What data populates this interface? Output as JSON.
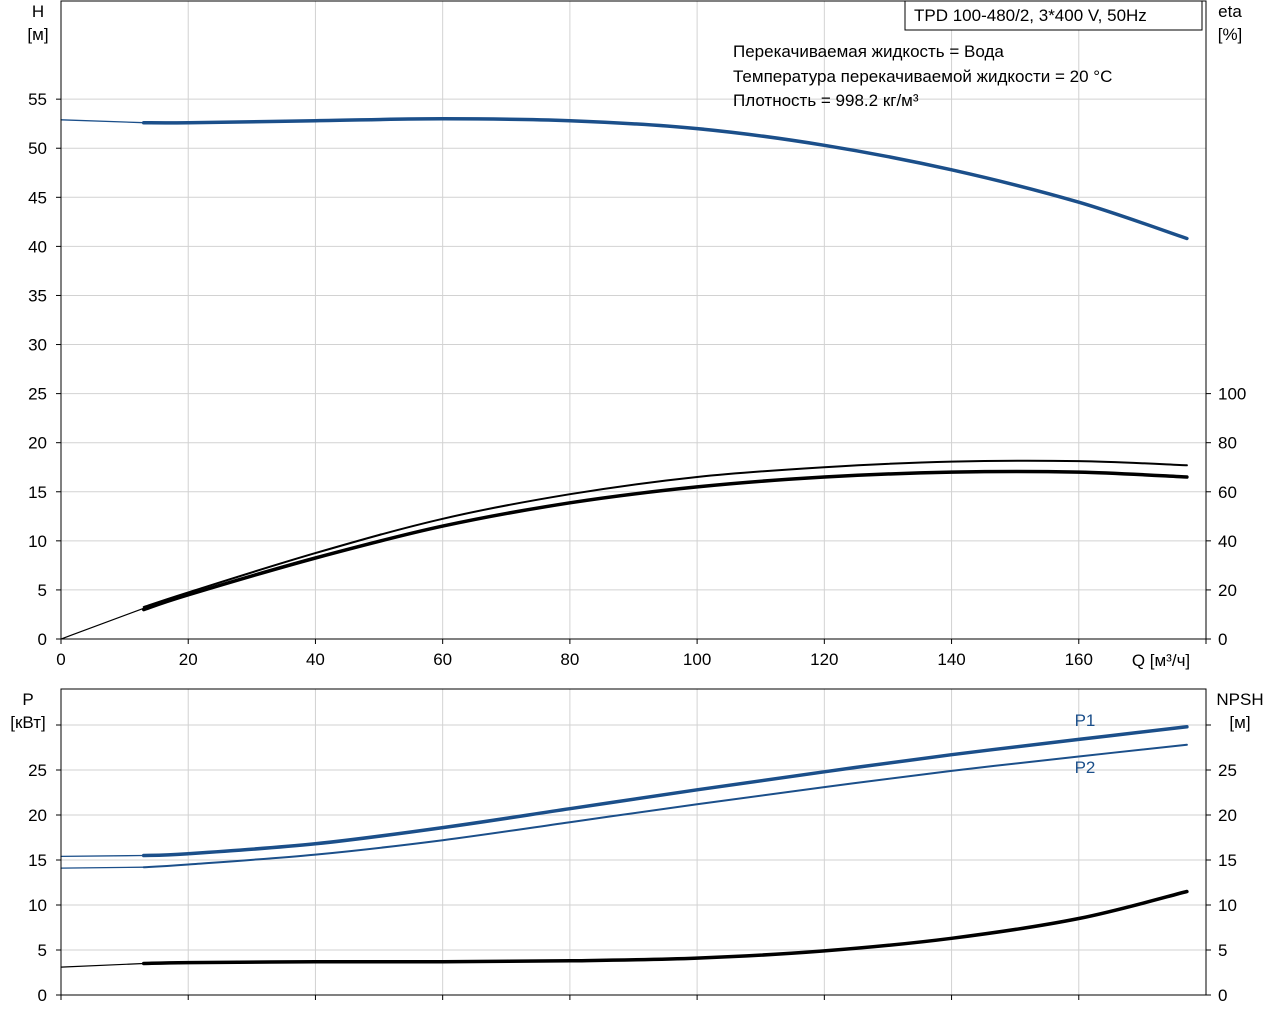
{
  "pump_model": "TPD 100-480/2, 3*400 V, 50Hz",
  "info_lines": [
    "Перекачиваемая жидкость = Вода",
    "Температура перекачиваемой жидкости = 20 °C",
    "Плотность = 998.2 кг/м³"
  ],
  "colors": {
    "blue": "#1b4f8a",
    "black": "#000000",
    "grid": "#d2d2d2"
  },
  "chart_data": [
    {
      "type": "line",
      "x_label": "Q [м³/ч]",
      "x_range": [
        0,
        180
      ],
      "x_ticks": [
        0,
        20,
        40,
        60,
        80,
        100,
        120,
        140,
        160
      ],
      "y_label_line1": "H",
      "y_label_line2": "[м]",
      "y_range": [
        0,
        65
      ],
      "y_ticks": [
        0,
        5,
        10,
        15,
        20,
        25,
        30,
        35,
        40,
        45,
        50,
        55
      ],
      "y2_label_line1": "eta",
      "y2_label_line2": "[%]",
      "y2_range": [
        0,
        260
      ],
      "y2_ticks": [
        0,
        20,
        40,
        60,
        80,
        100
      ],
      "grid": true,
      "series": [
        {
          "axis": "left",
          "color": "#1b4f8a",
          "width": 3.5,
          "x": [
            13,
            20,
            40,
            60,
            80,
            100,
            120,
            140,
            160,
            177
          ],
          "y": [
            52.6,
            52.6,
            52.8,
            53.0,
            52.8,
            52.0,
            50.3,
            47.8,
            44.5,
            40.8
          ]
        },
        {
          "axis": "left",
          "color": "#1b4f8a",
          "width": 1.3,
          "x": [
            0,
            13
          ],
          "y": [
            52.9,
            52.6
          ]
        },
        {
          "axis": "right",
          "color": "#000000",
          "width": 2,
          "x": [
            13,
            20,
            40,
            60,
            80,
            100,
            120,
            140,
            160,
            177
          ],
          "y": [
            13,
            19,
            35,
            49,
            59,
            66,
            70,
            72.3,
            72.5,
            70.8
          ]
        },
        {
          "axis": "right",
          "color": "#000000",
          "width": 3.5,
          "x": [
            13,
            20,
            40,
            60,
            80,
            100,
            120,
            140,
            160,
            177
          ],
          "y": [
            12,
            18,
            33,
            46,
            55.5,
            62,
            66,
            68,
            68,
            66
          ]
        },
        {
          "axis": "right",
          "color": "#000000",
          "width": 1.2,
          "x": [
            0,
            13
          ],
          "y": [
            0,
            12.5
          ]
        }
      ]
    },
    {
      "type": "line",
      "x_range": [
        0,
        180
      ],
      "y_label_line1": "P",
      "y_label_line2": "[кВт]",
      "y_range": [
        0,
        34
      ],
      "y_ticks": [
        0,
        5,
        10,
        15,
        20,
        25
      ],
      "y2_label_line1": "NPSH",
      "y2_label_line2": "[м]",
      "y2_range": [
        0,
        34
      ],
      "y2_ticks": [
        0,
        5,
        10,
        15,
        20,
        25
      ],
      "grid": true,
      "series": [
        {
          "name": "P1",
          "axis": "left",
          "color": "#1b4f8a",
          "width": 3.5,
          "x": [
            13,
            20,
            40,
            60,
            80,
            100,
            120,
            140,
            160,
            177
          ],
          "y": [
            15.5,
            15.7,
            16.8,
            18.6,
            20.7,
            22.8,
            24.8,
            26.7,
            28.4,
            29.8
          ]
        },
        {
          "name": "P2",
          "axis": "left",
          "color": "#1b4f8a",
          "width": 2,
          "x": [
            13,
            20,
            40,
            60,
            80,
            100,
            120,
            140,
            160,
            177
          ],
          "y": [
            14.2,
            14.5,
            15.6,
            17.2,
            19.2,
            21.2,
            23.1,
            24.9,
            26.5,
            27.8
          ]
        },
        {
          "axis": "left",
          "color": "#1b4f8a",
          "width": 1.3,
          "x": [
            0,
            13
          ],
          "y": [
            15.4,
            15.5
          ]
        },
        {
          "axis": "left",
          "color": "#1b4f8a",
          "width": 1.3,
          "x": [
            0,
            13
          ],
          "y": [
            14.1,
            14.2
          ]
        },
        {
          "axis": "right",
          "color": "#000000",
          "width": 3.5,
          "x": [
            13,
            20,
            40,
            60,
            80,
            100,
            120,
            140,
            160,
            177
          ],
          "y": [
            3.5,
            3.6,
            3.7,
            3.7,
            3.8,
            4.1,
            4.9,
            6.3,
            8.5,
            11.5
          ]
        },
        {
          "axis": "right",
          "color": "#000000",
          "width": 1.2,
          "x": [
            0,
            13
          ],
          "y": [
            3.1,
            3.5
          ]
        }
      ]
    }
  ]
}
